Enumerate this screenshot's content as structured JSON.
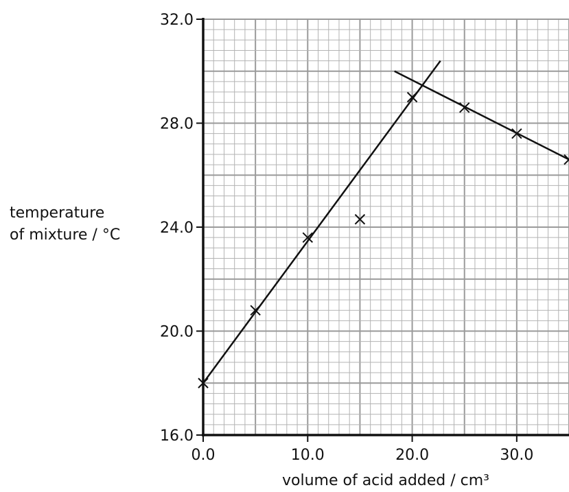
{
  "chart_data": {
    "type": "scatter",
    "xlabel": "volume of acid added / cm³",
    "ylabel_lines": [
      "temperature",
      "of mixture / °C"
    ],
    "xlim": [
      0,
      35
    ],
    "ylim": [
      16,
      32
    ],
    "x_ticks": [
      0,
      10,
      20,
      30
    ],
    "x_tick_labels": [
      "0.0",
      "10.0",
      "20.0",
      "30.0"
    ],
    "y_ticks": [
      16,
      20,
      24,
      28,
      32
    ],
    "y_tick_labels": [
      "16.0",
      "20.0",
      "24.0",
      "28.0",
      "32.0"
    ],
    "grid": true,
    "minor_step_x": 1,
    "minor_step_y": 0.4,
    "points": [
      {
        "x": 0,
        "y": 18.0
      },
      {
        "x": 5,
        "y": 20.8
      },
      {
        "x": 10,
        "y": 23.6
      },
      {
        "x": 15,
        "y": 24.3
      },
      {
        "x": 20,
        "y": 29.0
      },
      {
        "x": 25,
        "y": 28.6
      },
      {
        "x": 30,
        "y": 27.6
      },
      {
        "x": 35,
        "y": 26.6
      }
    ],
    "lines": [
      {
        "x": [
          0,
          22.7
        ],
        "y": [
          18.0,
          30.4
        ]
      },
      {
        "x": [
          18.3,
          35
        ],
        "y": [
          30.0,
          26.6
        ]
      }
    ]
  }
}
